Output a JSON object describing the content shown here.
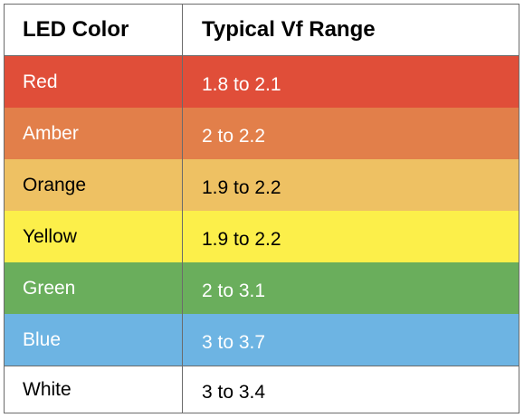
{
  "table": {
    "headers": [
      "LED Color",
      "Typical Vf Range"
    ],
    "rows": [
      {
        "color_name": "Red",
        "vf_range": "1.8 to 2.1",
        "bg": "#e04e39",
        "text_color": "#ffffff"
      },
      {
        "color_name": "Amber",
        "vf_range": "2 to 2.2",
        "bg": "#e27f4a",
        "text_color": "#ffffff"
      },
      {
        "color_name": "Orange",
        "vf_range": "1.9 to 2.2",
        "bg": "#eec163",
        "text_color": "#000000"
      },
      {
        "color_name": "Yellow",
        "vf_range": "1.9 to 2.2",
        "bg": "#fcef4a",
        "text_color": "#000000"
      },
      {
        "color_name": "Green",
        "vf_range": "2 to 3.1",
        "bg": "#6aae5c",
        "text_color": "#ffffff"
      },
      {
        "color_name": "Blue",
        "vf_range": "3 to 3.7",
        "bg": "#6db4e3",
        "text_color": "#ffffff"
      },
      {
        "color_name": "White",
        "vf_range": "3 to 3.4",
        "bg": "#ffffff",
        "text_color": "#000000"
      }
    ]
  }
}
